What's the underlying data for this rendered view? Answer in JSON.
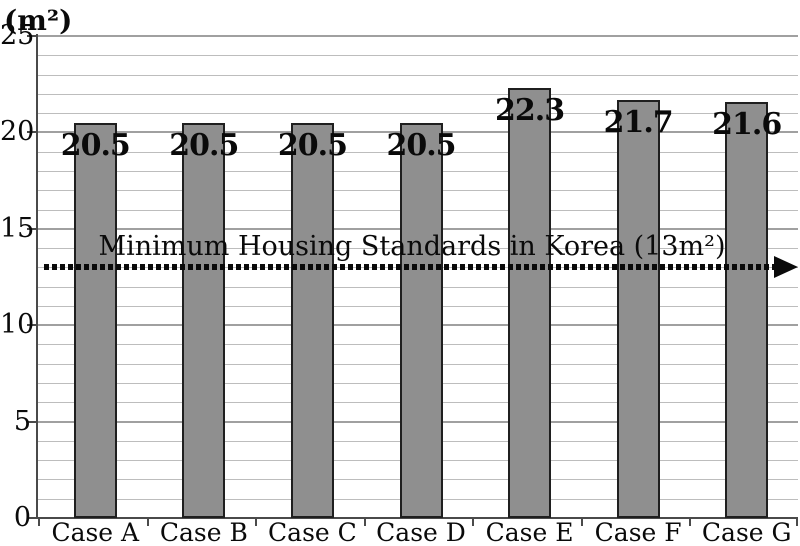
{
  "chart_data": {
    "type": "bar",
    "title": "",
    "unit_label": "(m²)",
    "categories": [
      "Case A",
      "Case B",
      "Case C",
      "Case D",
      "Case E",
      "Case F",
      "Case G"
    ],
    "values": [
      20.5,
      20.5,
      20.5,
      20.5,
      22.3,
      21.7,
      21.6
    ],
    "bar_labels": [
      "20.5",
      "20.5",
      "20.5",
      "20.5",
      "22.3",
      "21.7",
      "21.6"
    ],
    "ylim": [
      0,
      25
    ],
    "y_major_ticks": [
      0,
      5,
      10,
      15,
      20,
      25
    ],
    "y_minor_step": 1,
    "grid": "horizontal-minor-and-major",
    "legend": "none",
    "reference_line": {
      "value": 13,
      "label": "Minimum Housing Standards in Korea (13m²)",
      "style": "bold-dotted-with-right-arrow"
    },
    "colors": {
      "background": "#ffffff",
      "bar_fill": "#8f8f8f",
      "bar_border": "#1f1f1f",
      "grid_minor": "#bdbdbd",
      "grid_major": "#a0a0a0",
      "axis": "#4a4a4a",
      "text": "#0a0a0a"
    }
  }
}
